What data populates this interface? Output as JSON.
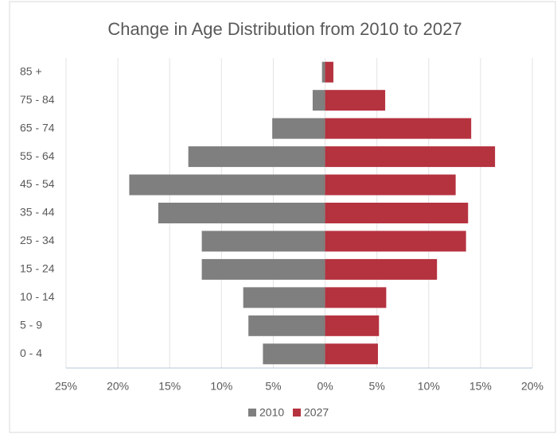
{
  "chart_data": {
    "type": "bar",
    "orientation": "horizontal",
    "stacked": true,
    "title": "Change in Age Distribution from 2010 to 2027",
    "categories": [
      "0 - 4",
      "5 - 9",
      "10 - 14",
      "15 - 24",
      "25 - 34",
      "35 - 44",
      "45 - 54",
      "55 - 64",
      "65 - 74",
      "75 - 84",
      "85 +"
    ],
    "series": [
      {
        "name": "2010",
        "color": "#7f7f7f",
        "values": [
          -6.0,
          -7.4,
          -7.9,
          -11.9,
          -11.9,
          -16.1,
          -18.9,
          -13.2,
          -5.1,
          -1.2,
          -0.3
        ]
      },
      {
        "name": "2027",
        "color": "#b5323f",
        "values": [
          5.1,
          5.2,
          5.9,
          10.8,
          13.6,
          13.8,
          12.6,
          16.4,
          14.1,
          5.8,
          0.8
        ]
      }
    ],
    "xlim": [
      -25,
      20
    ],
    "xticks": [
      {
        "value": -25,
        "label": "25%"
      },
      {
        "value": -20,
        "label": "20%"
      },
      {
        "value": -15,
        "label": "15%"
      },
      {
        "value": -10,
        "label": "10%"
      },
      {
        "value": -5,
        "label": "5%"
      },
      {
        "value": 0,
        "label": "0%"
      },
      {
        "value": 5,
        "label": "5%"
      },
      {
        "value": 10,
        "label": "10%"
      },
      {
        "value": 15,
        "label": "15%"
      },
      {
        "value": 20,
        "label": "20%"
      }
    ],
    "grid": true,
    "legend": "bottom"
  }
}
